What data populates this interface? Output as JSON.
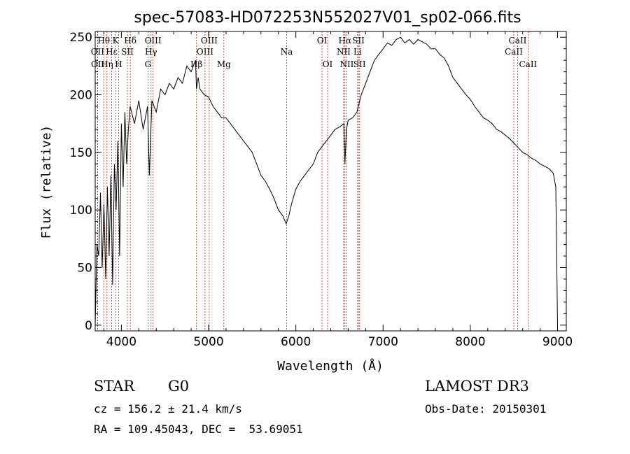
{
  "chart_data": {
    "type": "line",
    "title": "spec-57083-HD072253N552027V01_sp02-066.fits",
    "xlabel": "Wavelength (Å)",
    "ylabel": "Flux (relative)",
    "xlim": [
      3700,
      9100
    ],
    "ylim": [
      -5,
      255
    ],
    "xticks": [
      4000,
      5000,
      6000,
      7000,
      8000,
      9000
    ],
    "yticks": [
      0,
      50,
      100,
      150,
      200,
      250
    ],
    "series": [
      {
        "name": "flux",
        "x": [
          3700,
          3720,
          3740,
          3760,
          3780,
          3800,
          3820,
          3840,
          3860,
          3880,
          3900,
          3920,
          3940,
          3960,
          3980,
          4000,
          4020,
          4040,
          4060,
          4080,
          4100,
          4150,
          4200,
          4250,
          4300,
          4320,
          4350,
          4400,
          4450,
          4500,
          4550,
          4600,
          4650,
          4700,
          4750,
          4800,
          4850,
          4861,
          4880,
          4900,
          4950,
          5000,
          5050,
          5100,
          5150,
          5200,
          5250,
          5300,
          5350,
          5400,
          5450,
          5500,
          5550,
          5600,
          5650,
          5700,
          5750,
          5800,
          5850,
          5890,
          5920,
          5950,
          6000,
          6050,
          6100,
          6150,
          6200,
          6250,
          6300,
          6350,
          6400,
          6450,
          6500,
          6550,
          6563,
          6580,
          6600,
          6650,
          6700,
          6750,
          6800,
          6850,
          6900,
          6950,
          7000,
          7050,
          7100,
          7150,
          7200,
          7250,
          7300,
          7350,
          7400,
          7450,
          7500,
          7550,
          7600,
          7650,
          7700,
          7750,
          7800,
          7850,
          7900,
          7950,
          8000,
          8050,
          8100,
          8150,
          8200,
          8250,
          8300,
          8350,
          8400,
          8450,
          8500,
          8550,
          8600,
          8650,
          8700,
          8750,
          8800,
          8850,
          8900,
          8950,
          8980,
          9000
        ],
        "values": [
          0,
          70,
          60,
          115,
          50,
          105,
          40,
          120,
          60,
          130,
          35,
          140,
          100,
          160,
          60,
          175,
          120,
          185,
          140,
          170,
          190,
          175,
          195,
          170,
          190,
          130,
          195,
          185,
          205,
          200,
          210,
          205,
          215,
          210,
          225,
          220,
          230,
          205,
          215,
          205,
          200,
          198,
          190,
          185,
          180,
          180,
          175,
          170,
          165,
          160,
          155,
          150,
          140,
          130,
          125,
          118,
          110,
          100,
          95,
          88,
          95,
          105,
          118,
          125,
          130,
          135,
          140,
          150,
          155,
          160,
          165,
          170,
          172,
          175,
          140,
          170,
          178,
          180,
          185,
          200,
          210,
          220,
          230,
          235,
          240,
          245,
          243,
          248,
          250,
          245,
          248,
          244,
          248,
          246,
          244,
          240,
          240,
          235,
          232,
          225,
          215,
          210,
          205,
          200,
          196,
          190,
          185,
          180,
          178,
          175,
          170,
          168,
          165,
          162,
          158,
          154,
          150,
          148,
          145,
          143,
          140,
          138,
          136,
          132,
          120,
          0
        ]
      }
    ],
    "emission_lines": [
      {
        "label": "Hθ",
        "wavelength": 3798,
        "row": 1
      },
      {
        "label": "OII",
        "wavelength": 3727,
        "row": 2
      },
      {
        "label": "OII",
        "wavelength": 3729,
        "row": 3
      },
      {
        "label": "Hη",
        "wavelength": 3835,
        "row": 3
      },
      {
        "label": "Hε",
        "wavelength": 3889,
        "row": 2
      },
      {
        "label": "K",
        "wavelength": 3934,
        "row": 1
      },
      {
        "label": "H",
        "wavelength": 3969,
        "row": 3
      },
      {
        "label": "SII",
        "wavelength": 4069,
        "row": 2
      },
      {
        "label": "Hδ",
        "wavelength": 4102,
        "row": 1
      },
      {
        "label": "OIII",
        "wavelength": 4363,
        "row": 1
      },
      {
        "label": "Hγ",
        "wavelength": 4340,
        "row": 2
      },
      {
        "label": "G",
        "wavelength": 4305,
        "row": 3
      },
      {
        "label": "Hβ",
        "wavelength": 4861,
        "row": 3
      },
      {
        "label": "OIII",
        "wavelength": 4959,
        "row": 2
      },
      {
        "label": "OIII",
        "wavelength": 5007,
        "row": 1
      },
      {
        "label": "Mg",
        "wavelength": 5175,
        "row": 3
      },
      {
        "label": "Na",
        "wavelength": 5894,
        "row": 2
      },
      {
        "label": "OI",
        "wavelength": 6300,
        "row": 1
      },
      {
        "label": "OI",
        "wavelength": 6364,
        "row": 3
      },
      {
        "label": "NII",
        "wavelength": 6548,
        "row": 2
      },
      {
        "label": "NII",
        "wavelength": 6584,
        "row": 3
      },
      {
        "label": "Hα",
        "wavelength": 6563,
        "row": 1
      },
      {
        "label": "SII",
        "wavelength": 6717,
        "row": 1
      },
      {
        "label": "Li",
        "wavelength": 6708,
        "row": 2
      },
      {
        "label": "SII",
        "wavelength": 6731,
        "row": 3
      },
      {
        "label": "CaII",
        "wavelength": 8498,
        "row": 2
      },
      {
        "label": "CaII",
        "wavelength": 8542,
        "row": 1
      },
      {
        "label": "CaII",
        "wavelength": 8662,
        "row": 3
      }
    ]
  },
  "info": {
    "object_class": "STAR",
    "subclass": "G0",
    "survey": "LAMOST DR3",
    "redshift": "cz = 156.2 ± 21.4 km/s",
    "obs_date": "Obs-Date: 20150301",
    "coords": "RA = 109.45043, DEC =  53.69051"
  },
  "colors": {
    "line_marker": "#b22222",
    "spectrum": "#000000"
  }
}
